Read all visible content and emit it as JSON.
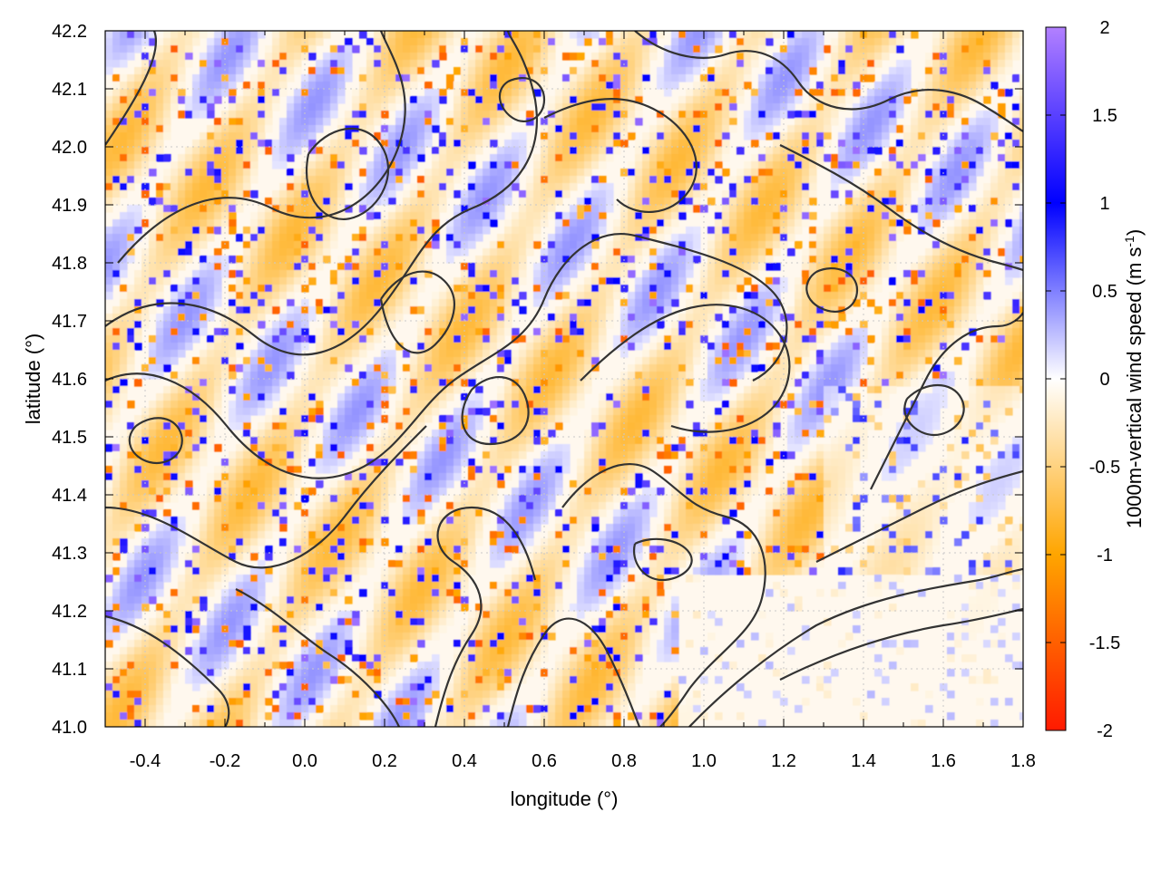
{
  "chart_data": {
    "type": "heatmap",
    "title": "",
    "xlabel": "longitude (°)",
    "ylabel": "latitude (°)",
    "colorbar_label": "1000m-vertical wind speed (m s",
    "colorbar_label_sup": "-1",
    "colorbar_label_end": ")",
    "xlim": [
      -0.5,
      1.8
    ],
    "ylim": [
      41.0,
      42.2
    ],
    "x_ticks": [
      -0.4,
      -0.2,
      0.0,
      0.2,
      0.4,
      0.6,
      0.8,
      1.0,
      1.2,
      1.4,
      1.6,
      1.8
    ],
    "x_tick_labels": [
      "-0.4",
      "-0.2",
      "0.0",
      "0.2",
      "0.4",
      "0.6",
      "0.8",
      "1.0",
      "1.2",
      "1.4",
      "1.6",
      "1.8"
    ],
    "y_ticks": [
      41.0,
      41.1,
      41.2,
      41.3,
      41.4,
      41.5,
      41.6,
      41.7,
      41.8,
      41.9,
      42.0,
      42.1,
      42.2
    ],
    "y_tick_labels": [
      "41.0",
      "41.1",
      "41.2",
      "41.3",
      "41.4",
      "41.5",
      "41.6",
      "41.7",
      "41.8",
      "41.9",
      "42.0",
      "42.1",
      "42.2"
    ],
    "colorbar_range": [
      -2,
      2
    ],
    "colorbar_ticks": [
      2,
      1.5,
      1,
      0.5,
      0,
      -0.5,
      -1,
      -1.5,
      -2
    ],
    "colorbar_tick_labels": [
      "2",
      "1.5",
      "1",
      "0.5",
      "0",
      "-0.5",
      "-1",
      "-1.5",
      "-2"
    ],
    "colormap": [
      {
        "value": -2,
        "color": "#ff1a00"
      },
      {
        "value": -1,
        "color": "#ffa500"
      },
      {
        "value": 0,
        "color": "#ffffff"
      },
      {
        "value": 1,
        "color": "#0000ff"
      },
      {
        "value": 2,
        "color": "#b280ff"
      }
    ],
    "grid": true,
    "contours": "terrain elevation contour lines overlaid in dark gray"
  }
}
